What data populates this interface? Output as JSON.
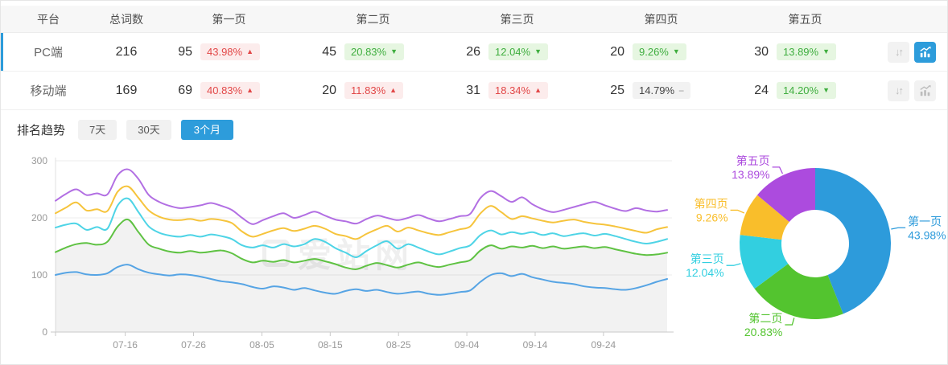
{
  "table": {
    "headers": {
      "platform": "平台",
      "total": "总词数",
      "pages": [
        "第一页",
        "第二页",
        "第三页",
        "第四页",
        "第五页"
      ]
    },
    "rows": [
      {
        "platform": "PC端",
        "total": "216",
        "selected": true,
        "chart_active": true,
        "pages": [
          {
            "count": "95",
            "pct": "43.98%",
            "trend": "up",
            "arrow": "▲"
          },
          {
            "count": "45",
            "pct": "20.83%",
            "trend": "down",
            "arrow": "▼"
          },
          {
            "count": "26",
            "pct": "12.04%",
            "trend": "down",
            "arrow": "▼"
          },
          {
            "count": "20",
            "pct": "9.26%",
            "trend": "down",
            "arrow": "▼"
          },
          {
            "count": "30",
            "pct": "13.89%",
            "trend": "down",
            "arrow": "▼"
          }
        ]
      },
      {
        "platform": "移动端",
        "total": "169",
        "selected": false,
        "chart_active": false,
        "pages": [
          {
            "count": "69",
            "pct": "40.83%",
            "trend": "up",
            "arrow": "▲"
          },
          {
            "count": "20",
            "pct": "11.83%",
            "trend": "up",
            "arrow": "▲"
          },
          {
            "count": "31",
            "pct": "18.34%",
            "trend": "up",
            "arrow": "▲"
          },
          {
            "count": "25",
            "pct": "14.79%",
            "trend": "flat",
            "arrow": "−"
          },
          {
            "count": "24",
            "pct": "14.20%",
            "trend": "down",
            "arrow": "▼"
          }
        ]
      }
    ]
  },
  "icons": {
    "sort": "↓↑"
  },
  "trend_section": {
    "title": "排名趋势",
    "tabs": [
      {
        "label": "7天",
        "active": false
      },
      {
        "label": "30天",
        "active": false
      },
      {
        "label": "3个月",
        "active": true
      }
    ]
  },
  "watermark": "爱站网",
  "chart_data": [
    {
      "type": "line",
      "x_labels": [
        "07-16",
        "07-26",
        "08-05",
        "08-15",
        "08-25",
        "09-04",
        "09-14",
        "09-24"
      ],
      "ylim": [
        0,
        300
      ],
      "yticks": [
        0,
        100,
        200,
        300
      ],
      "grid": true,
      "legend": "none",
      "area_fill_under_series_index": 1,
      "series": [
        {
          "name": "第一页",
          "color": "#56A4E4",
          "values": [
            100,
            104,
            105,
            101,
            100,
            103,
            114,
            118,
            110,
            104,
            101,
            99,
            101,
            100,
            97,
            93,
            89,
            87,
            84,
            79,
            76,
            80,
            78,
            74,
            77,
            73,
            69,
            67,
            72,
            75,
            72,
            74,
            70,
            67,
            69,
            71,
            67,
            65,
            67,
            70,
            73,
            88,
            100,
            103,
            98,
            102,
            96,
            92,
            88,
            86,
            84,
            80,
            78,
            77,
            75,
            74,
            77,
            82,
            88,
            93
          ]
        },
        {
          "name": "第二页",
          "color": "#5FC243",
          "values": [
            140,
            148,
            154,
            156,
            153,
            158,
            185,
            197,
            175,
            153,
            146,
            141,
            139,
            142,
            139,
            141,
            143,
            138,
            128,
            122,
            125,
            123,
            126,
            122,
            125,
            128,
            124,
            119,
            113,
            110,
            116,
            121,
            117,
            113,
            118,
            122,
            117,
            114,
            118,
            122,
            126,
            143,
            152,
            146,
            150,
            148,
            151,
            147,
            150,
            146,
            148,
            150,
            147,
            149,
            145,
            141,
            137,
            135,
            136,
            139
          ]
        },
        {
          "name": "第三页",
          "color": "#4ED4E6",
          "values": [
            183,
            188,
            190,
            179,
            184,
            181,
            222,
            234,
            210,
            185,
            174,
            169,
            167,
            170,
            167,
            171,
            168,
            163,
            152,
            148,
            152,
            148,
            154,
            150,
            154,
            163,
            158,
            147,
            139,
            131,
            142,
            152,
            159,
            146,
            154,
            148,
            141,
            136,
            141,
            147,
            152,
            170,
            178,
            171,
            175,
            172,
            175,
            170,
            173,
            168,
            171,
            173,
            169,
            172,
            168,
            163,
            158,
            155,
            158,
            163
          ]
        },
        {
          "name": "第四页",
          "color": "#F6C43C",
          "values": [
            208,
            218,
            227,
            213,
            215,
            212,
            246,
            255,
            235,
            213,
            202,
            197,
            196,
            198,
            195,
            198,
            196,
            191,
            176,
            167,
            172,
            178,
            182,
            177,
            181,
            186,
            181,
            172,
            168,
            163,
            172,
            180,
            186,
            176,
            183,
            178,
            173,
            170,
            175,
            180,
            185,
            208,
            221,
            210,
            198,
            203,
            199,
            195,
            192,
            195,
            197,
            193,
            190,
            188,
            185,
            181,
            177,
            174,
            180,
            184
          ]
        },
        {
          "name": "第五页",
          "color": "#B26FE3",
          "values": [
            230,
            242,
            250,
            240,
            243,
            241,
            275,
            285,
            268,
            240,
            228,
            221,
            217,
            219,
            222,
            226,
            221,
            214,
            200,
            189,
            196,
            203,
            208,
            200,
            205,
            211,
            204,
            197,
            194,
            190,
            198,
            204,
            200,
            196,
            200,
            205,
            199,
            194,
            198,
            203,
            207,
            235,
            247,
            238,
            228,
            236,
            224,
            215,
            210,
            214,
            219,
            224,
            228,
            222,
            216,
            212,
            217,
            213,
            211,
            214
          ]
        }
      ]
    },
    {
      "type": "pie",
      "donut": true,
      "slices": [
        {
          "label": "第一页",
          "value": 43.98,
          "pct": "43.98%",
          "color": "#2D9BDB"
        },
        {
          "label": "第二页",
          "value": 20.83,
          "pct": "20.83%",
          "color": "#53C42F"
        },
        {
          "label": "第三页",
          "value": 12.04,
          "pct": "12.04%",
          "color": "#32CFE0"
        },
        {
          "label": "第四页",
          "value": 9.26,
          "pct": "9.26%",
          "color": "#F9BE2B"
        },
        {
          "label": "第五页",
          "value": 13.89,
          "pct": "13.89%",
          "color": "#AC4BDE"
        }
      ]
    }
  ]
}
